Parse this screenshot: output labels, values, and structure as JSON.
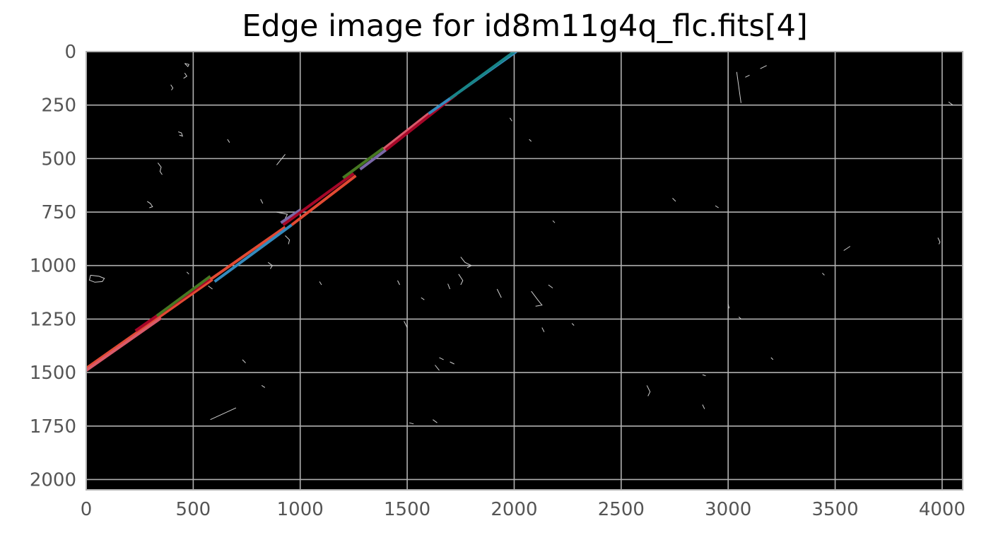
{
  "chart_data": {
    "type": "image",
    "title": "Edge image for id8m11g4q_flc.fits[4]",
    "xlabel": "",
    "ylabel": "",
    "xlim": [
      0,
      4096
    ],
    "ylim": [
      2048,
      0
    ],
    "y_inverted": true,
    "grid": true,
    "x_ticks": [
      0,
      500,
      1000,
      1500,
      2000,
      2500,
      3000,
      3500,
      4000
    ],
    "y_ticks": [
      0,
      250,
      500,
      750,
      1000,
      1250,
      1500,
      1750,
      2000
    ],
    "background_color": "#000000",
    "grid_color": "#b0b0b0",
    "detected_lines": [
      {
        "color": "#e24a33",
        "points": [
          [
            0,
            1480
          ],
          [
            590,
            1065
          ]
        ]
      },
      {
        "color": "#d95a6a",
        "points": [
          [
            0,
            1490
          ],
          [
            350,
            1245
          ]
        ]
      },
      {
        "color": "#a60628",
        "points": [
          [
            230,
            1305
          ],
          [
            580,
            1060
          ]
        ]
      },
      {
        "color": "#467821",
        "points": [
          [
            330,
            1235
          ],
          [
            580,
            1050
          ]
        ]
      },
      {
        "color": "#e24a33",
        "points": [
          [
            580,
            1065
          ],
          [
            930,
            820
          ]
        ]
      },
      {
        "color": "#348abd",
        "points": [
          [
            600,
            1075
          ],
          [
            960,
            810
          ]
        ]
      },
      {
        "color": "#7a68a6",
        "points": [
          [
            910,
            800
          ],
          [
            1000,
            740
          ]
        ]
      },
      {
        "color": "#a60628",
        "points": [
          [
            920,
            810
          ],
          [
            1250,
            570
          ]
        ]
      },
      {
        "color": "#e24a33",
        "points": [
          [
            960,
            810
          ],
          [
            1260,
            580
          ]
        ]
      },
      {
        "color": "#467821",
        "points": [
          [
            1200,
            590
          ],
          [
            1390,
            450
          ]
        ]
      },
      {
        "color": "#7a68a6",
        "points": [
          [
            1280,
            550
          ],
          [
            1400,
            460
          ]
        ]
      },
      {
        "color": "#d95a6a",
        "points": [
          [
            1390,
            455
          ],
          [
            1600,
            290
          ]
        ]
      },
      {
        "color": "#a60628",
        "points": [
          [
            1400,
            460
          ],
          [
            1730,
            200
          ]
        ]
      },
      {
        "color": "#348abd",
        "points": [
          [
            1600,
            290
          ],
          [
            2010,
            0
          ]
        ]
      },
      {
        "color": "#188487",
        "points": [
          [
            1700,
            220
          ],
          [
            2000,
            0
          ]
        ]
      }
    ],
    "edge_features": [
      {
        "points": [
          [
            20,
            1045
          ],
          [
            60,
            1050
          ],
          [
            85,
            1060
          ],
          [
            75,
            1075
          ],
          [
            40,
            1078
          ],
          [
            15,
            1068
          ],
          [
            20,
            1045
          ]
        ]
      },
      {
        "points": [
          [
            460,
            55
          ],
          [
            480,
            60
          ],
          [
            475,
            70
          ],
          [
            460,
            55
          ]
        ]
      },
      {
        "points": [
          [
            460,
            100
          ],
          [
            470,
            115
          ],
          [
            455,
            125
          ]
        ]
      },
      {
        "points": [
          [
            395,
            155
          ],
          [
            405,
            170
          ],
          [
            398,
            180
          ]
        ]
      },
      {
        "points": [
          [
            430,
            375
          ],
          [
            445,
            380
          ],
          [
            450,
            395
          ],
          [
            435,
            390
          ]
        ]
      },
      {
        "points": [
          [
            660,
            410
          ],
          [
            670,
            425
          ]
        ]
      },
      {
        "points": [
          [
            890,
            530
          ],
          [
            930,
            480
          ]
        ]
      },
      {
        "points": [
          [
            335,
            520
          ],
          [
            350,
            540
          ],
          [
            345,
            560
          ],
          [
            355,
            575
          ]
        ]
      },
      {
        "points": [
          [
            285,
            700
          ],
          [
            300,
            710
          ],
          [
            310,
            725
          ],
          [
            295,
            730
          ]
        ]
      },
      {
        "points": [
          [
            815,
            690
          ],
          [
            825,
            710
          ]
        ]
      },
      {
        "points": [
          [
            890,
            750
          ],
          [
            940,
            760
          ],
          [
            930,
            780
          ]
        ]
      },
      {
        "points": [
          [
            930,
            860
          ],
          [
            950,
            880
          ],
          [
            945,
            900
          ]
        ]
      },
      {
        "points": [
          [
            850,
            985
          ],
          [
            870,
            1000
          ],
          [
            860,
            1015
          ]
        ]
      },
      {
        "points": [
          [
            470,
            1030
          ],
          [
            480,
            1040
          ]
        ]
      },
      {
        "points": [
          [
            570,
            1095
          ],
          [
            590,
            1110
          ]
        ]
      },
      {
        "points": [
          [
            1090,
            1075
          ],
          [
            1100,
            1090
          ]
        ]
      },
      {
        "points": [
          [
            1455,
            1070
          ],
          [
            1465,
            1090
          ]
        ]
      },
      {
        "points": [
          [
            1565,
            1150
          ],
          [
            1580,
            1160
          ]
        ]
      },
      {
        "points": [
          [
            1485,
            1260
          ],
          [
            1500,
            1290
          ]
        ]
      },
      {
        "points": [
          [
            1750,
            960
          ],
          [
            1770,
            985
          ],
          [
            1800,
            1000
          ],
          [
            1780,
            1010
          ]
        ]
      },
      {
        "points": [
          [
            1740,
            1040
          ],
          [
            1760,
            1070
          ],
          [
            1750,
            1090
          ]
        ]
      },
      {
        "points": [
          [
            1690,
            1085
          ],
          [
            1700,
            1110
          ]
        ]
      },
      {
        "points": [
          [
            1920,
            1110
          ],
          [
            1940,
            1150
          ]
        ]
      },
      {
        "points": [
          [
            2080,
            1120
          ],
          [
            2110,
            1160
          ],
          [
            2130,
            1185
          ],
          [
            2100,
            1190
          ]
        ]
      },
      {
        "points": [
          [
            2130,
            1290
          ],
          [
            2140,
            1310
          ]
        ]
      },
      {
        "points": [
          [
            2160,
            1090
          ],
          [
            2180,
            1105
          ]
        ]
      },
      {
        "points": [
          [
            2270,
            1270
          ],
          [
            2280,
            1280
          ]
        ]
      },
      {
        "points": [
          [
            2180,
            790
          ],
          [
            2190,
            800
          ]
        ]
      },
      {
        "points": [
          [
            1980,
            310
          ],
          [
            1990,
            325
          ]
        ]
      },
      {
        "points": [
          [
            2070,
            410
          ],
          [
            2080,
            420
          ]
        ]
      },
      {
        "points": [
          [
            1650,
            1430
          ],
          [
            1670,
            1440
          ]
        ]
      },
      {
        "points": [
          [
            1630,
            1465
          ],
          [
            1650,
            1490
          ]
        ]
      },
      {
        "points": [
          [
            1700,
            1450
          ],
          [
            1720,
            1460
          ]
        ]
      },
      {
        "points": [
          [
            1510,
            1735
          ],
          [
            1530,
            1740
          ]
        ]
      },
      {
        "points": [
          [
            1620,
            1720
          ],
          [
            1640,
            1735
          ]
        ]
      },
      {
        "points": [
          [
            730,
            1440
          ],
          [
            745,
            1455
          ]
        ]
      },
      {
        "points": [
          [
            820,
            1560
          ],
          [
            835,
            1570
          ]
        ]
      },
      {
        "points": [
          [
            580,
            1720
          ],
          [
            700,
            1665
          ]
        ]
      },
      {
        "points": [
          [
            2740,
            685
          ],
          [
            2755,
            700
          ]
        ]
      },
      {
        "points": [
          [
            2940,
            720
          ],
          [
            2955,
            730
          ]
        ]
      },
      {
        "points": [
          [
            3040,
            95
          ],
          [
            3060,
            240
          ]
        ]
      },
      {
        "points": [
          [
            3080,
            120
          ],
          [
            3100,
            110
          ]
        ]
      },
      {
        "points": [
          [
            3150,
            80
          ],
          [
            3180,
            65
          ]
        ]
      },
      {
        "points": [
          [
            3540,
            930
          ],
          [
            3570,
            910
          ]
        ]
      },
      {
        "points": [
          [
            3440,
            1035
          ],
          [
            3450,
            1045
          ]
        ]
      },
      {
        "points": [
          [
            3000,
            1180
          ],
          [
            3005,
            1200
          ]
        ]
      },
      {
        "points": [
          [
            3050,
            1240
          ],
          [
            3060,
            1250
          ]
        ]
      },
      {
        "points": [
          [
            3200,
            1430
          ],
          [
            3210,
            1440
          ]
        ]
      },
      {
        "points": [
          [
            3980,
            870
          ],
          [
            3990,
            890
          ],
          [
            3985,
            900
          ]
        ]
      },
      {
        "points": [
          [
            4030,
            235
          ],
          [
            4050,
            250
          ]
        ]
      },
      {
        "points": [
          [
            2620,
            1560
          ],
          [
            2635,
            1590
          ],
          [
            2625,
            1610
          ]
        ]
      },
      {
        "points": [
          [
            2880,
            1650
          ],
          [
            2890,
            1670
          ]
        ]
      },
      {
        "points": [
          [
            2880,
            1510
          ],
          [
            2895,
            1515
          ]
        ]
      }
    ]
  }
}
